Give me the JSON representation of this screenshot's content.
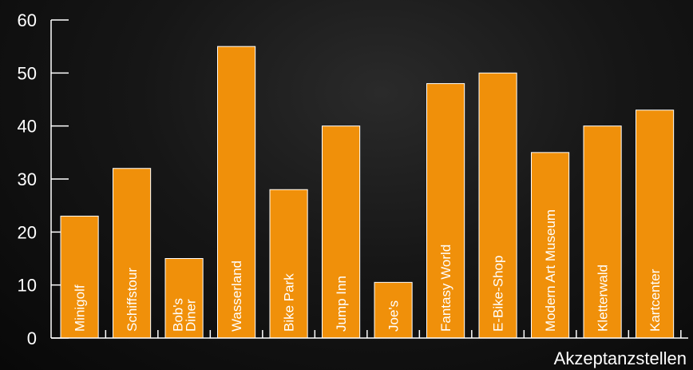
{
  "chart_data": {
    "type": "bar",
    "categories": [
      "Minigolf",
      "Schiffstour",
      "Bob's\nDiner",
      "Wasserland",
      "Bike Park",
      "Jump Inn",
      "Joe's",
      "Fantasy World",
      "E-Bike-Shop",
      "Modern Art Museum",
      "Kletterwald",
      "Kartcenter"
    ],
    "values": [
      23,
      32,
      15,
      55,
      28,
      40,
      10.5,
      48,
      50,
      35,
      40,
      43
    ],
    "title": "",
    "xlabel": "Akzeptanzstellen",
    "ylabel": "",
    "ylim": [
      0,
      60
    ],
    "yticks": [
      0,
      10,
      20,
      30,
      40,
      50,
      60
    ],
    "grid": false,
    "label_position": "inside-bar-vertical",
    "colors": {
      "bar": "#f0900a",
      "bar_stroke": "#ffffff",
      "axis": "#ffffff",
      "text": "#ffffff"
    }
  }
}
